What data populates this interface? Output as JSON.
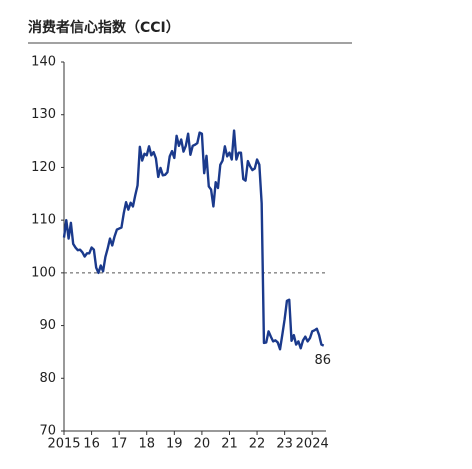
{
  "chart_data": {
    "type": "line",
    "title": "消费者信心指数（CCI）",
    "x": [
      2015,
      2015.083,
      2015.167,
      2015.25,
      2015.333,
      2015.417,
      2015.5,
      2015.583,
      2015.667,
      2015.75,
      2015.833,
      2015.917,
      2016,
      2016.083,
      2016.167,
      2016.25,
      2016.333,
      2016.417,
      2016.5,
      2016.583,
      2016.667,
      2016.75,
      2016.833,
      2016.917,
      2017,
      2017.083,
      2017.167,
      2017.25,
      2017.333,
      2017.417,
      2017.5,
      2017.583,
      2017.667,
      2017.75,
      2017.833,
      2017.917,
      2018,
      2018.083,
      2018.167,
      2018.25,
      2018.333,
      2018.417,
      2018.5,
      2018.583,
      2018.667,
      2018.75,
      2018.833,
      2018.917,
      2019,
      2019.083,
      2019.167,
      2019.25,
      2019.333,
      2019.417,
      2019.5,
      2019.583,
      2019.667,
      2019.75,
      2019.833,
      2019.917,
      2020,
      2020.083,
      2020.167,
      2020.25,
      2020.333,
      2020.417,
      2020.5,
      2020.583,
      2020.667,
      2020.75,
      2020.833,
      2020.917,
      2021,
      2021.083,
      2021.167,
      2021.25,
      2021.333,
      2021.417,
      2021.5,
      2021.583,
      2021.667,
      2021.75,
      2021.833,
      2021.917,
      2022,
      2022.083,
      2022.167,
      2022.25,
      2022.333,
      2022.417,
      2022.5,
      2022.583,
      2022.667,
      2022.75,
      2022.833,
      2022.917,
      2023,
      2023.083,
      2023.167,
      2023.25,
      2023.333,
      2023.417,
      2023.5,
      2023.583,
      2023.667,
      2023.75,
      2023.833,
      2023.917,
      2024,
      2024.083,
      2024.167,
      2024.25,
      2024.333,
      2024.417
    ],
    "series": [
      {
        "color": "#1b3a8c",
        "values": [
          106.7,
          110,
          106.5,
          109.5,
          105.5,
          104.8,
          104.3,
          104.4,
          103.9,
          103.1,
          103.7,
          103.7,
          104.8,
          104.4,
          101,
          100,
          101.4,
          100.3,
          103,
          104.6,
          106.5,
          105.2,
          106.9,
          108.2,
          108.4,
          108.6,
          111.3,
          113.4,
          112,
          113.3,
          112.6,
          114.7,
          116.6,
          123.9,
          121.3,
          122.6,
          122.3,
          124,
          122.3,
          122.9,
          121.7,
          118.2,
          119.9,
          118.5,
          118.6,
          119.1,
          122.1,
          123.1,
          121.8,
          126,
          124.1,
          125.3,
          123,
          124.1,
          126.4,
          122.4,
          124.1,
          124.3,
          124.6,
          126.6,
          126.4,
          118.9,
          122.2,
          116.4,
          115.8,
          112.6,
          117.2,
          116.1,
          120.5,
          121.3,
          124,
          122.1,
          122.8,
          121.5,
          127,
          121.5,
          122.8,
          122.8,
          117.8,
          117.5,
          121.2,
          120.2,
          119.5,
          119.8,
          121.5,
          120.5,
          113.2,
          86.7,
          86.8,
          88.9,
          87.9,
          87,
          87.2,
          86.8,
          85.5,
          88.3,
          91.2,
          94.7,
          94.9,
          87.1,
          88.2,
          86.4,
          87,
          85.7,
          87.2,
          87.9,
          87,
          87.6,
          88.9,
          89.1,
          89.4,
          88.2,
          86.4,
          86.2
        ]
      }
    ],
    "annotation": "86",
    "reference_line": 100,
    "xlim": [
      2015,
      2024.5
    ],
    "xticks": [
      {
        "value": 2015,
        "label": "2015"
      },
      {
        "value": 2016,
        "label": "16"
      },
      {
        "value": 2017,
        "label": "17"
      },
      {
        "value": 2018,
        "label": "18"
      },
      {
        "value": 2019,
        "label": "19"
      },
      {
        "value": 2020,
        "label": "20"
      },
      {
        "value": 2021,
        "label": "21"
      },
      {
        "value": 2022,
        "label": "22"
      },
      {
        "value": 2023,
        "label": "23"
      },
      2024
    ],
    "ylim": [
      70,
      140
    ],
    "yticks": [
      70,
      80,
      90,
      100,
      110,
      120,
      130,
      140
    ]
  }
}
